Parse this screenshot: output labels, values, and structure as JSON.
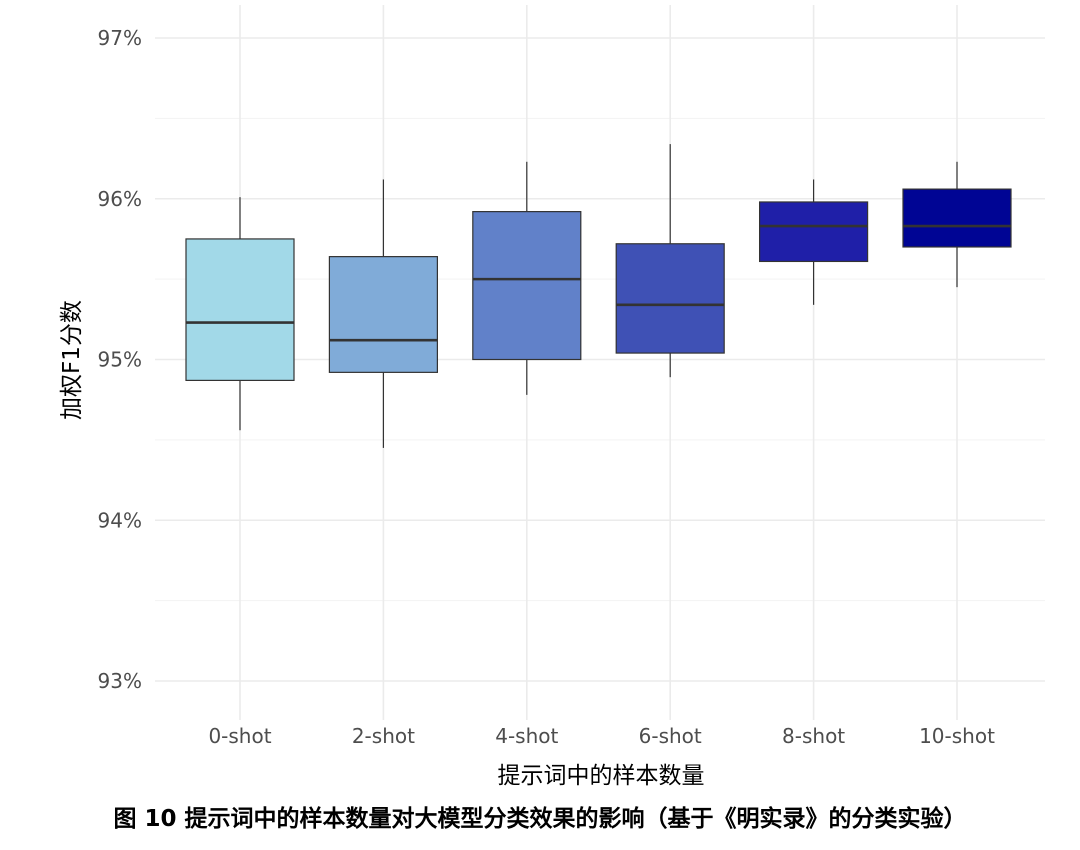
{
  "chart_data": {
    "type": "box",
    "xlabel": "提示词中的样本数量",
    "ylabel": "加权F1分数",
    "ylim": [
      92.85,
      97.2
    ],
    "y_ticks": [
      93,
      94,
      95,
      96,
      97
    ],
    "y_tick_labels": [
      "93%",
      "94%",
      "95%",
      "96%",
      "97%"
    ],
    "grid": true,
    "categories": [
      "0-shot",
      "2-shot",
      "4-shot",
      "6-shot",
      "8-shot",
      "10-shot"
    ],
    "boxes": [
      {
        "category": "0-shot",
        "min": 94.56,
        "q1": 94.87,
        "median": 95.23,
        "q3": 95.75,
        "max": 96.01,
        "color": "#a2d9e8"
      },
      {
        "category": "2-shot",
        "min": 94.45,
        "q1": 94.92,
        "median": 95.12,
        "q3": 95.64,
        "max": 96.12,
        "color": "#80abd8"
      },
      {
        "category": "4-shot",
        "min": 94.78,
        "q1": 95.0,
        "median": 95.5,
        "q3": 95.92,
        "max": 96.23,
        "color": "#6181c9"
      },
      {
        "category": "6-shot",
        "min": 94.89,
        "q1": 95.04,
        "median": 95.34,
        "q3": 95.72,
        "max": 96.34,
        "color": "#3f51b5"
      },
      {
        "category": "8-shot",
        "min": 95.34,
        "q1": 95.61,
        "median": 95.83,
        "q3": 95.98,
        "max": 96.12,
        "color": "#1f1fa8"
      },
      {
        "category": "10-shot",
        "min": 95.45,
        "q1": 95.7,
        "median": 95.83,
        "q3": 96.06,
        "max": 96.23,
        "color": "#000594"
      }
    ]
  },
  "caption": "图 10 提示词中的样本数量对大模型分类效果的影响（基于《明实录》的分类实验）"
}
